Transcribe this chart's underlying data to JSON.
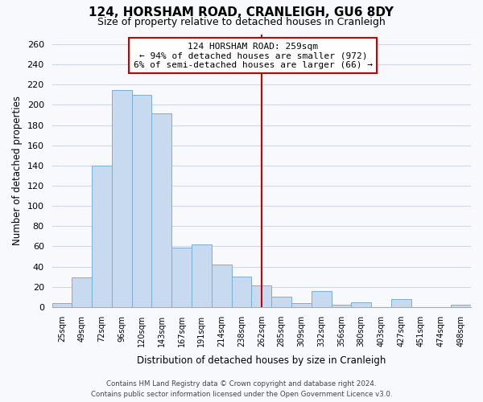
{
  "title": "124, HORSHAM ROAD, CRANLEIGH, GU6 8DY",
  "subtitle": "Size of property relative to detached houses in Cranleigh",
  "xlabel": "Distribution of detached houses by size in Cranleigh",
  "ylabel": "Number of detached properties",
  "bin_labels": [
    "25sqm",
    "49sqm",
    "72sqm",
    "96sqm",
    "120sqm",
    "143sqm",
    "167sqm",
    "191sqm",
    "214sqm",
    "238sqm",
    "262sqm",
    "285sqm",
    "309sqm",
    "332sqm",
    "356sqm",
    "380sqm",
    "403sqm",
    "427sqm",
    "451sqm",
    "474sqm",
    "498sqm"
  ],
  "bar_values": [
    4,
    29,
    140,
    215,
    210,
    192,
    59,
    62,
    42,
    30,
    21,
    10,
    4,
    16,
    2,
    5,
    0,
    8,
    0,
    0,
    2
  ],
  "bar_color": "#c8daf0",
  "bar_edge_color": "#7aafd4",
  "property_line_x": 10.0,
  "property_line_color": "#cc0000",
  "annotation_title": "124 HORSHAM ROAD: 259sqm",
  "annotation_line1": "← 94% of detached houses are smaller (972)",
  "annotation_line2": "6% of semi-detached houses are larger (66) →",
  "annotation_box_color": "white",
  "annotation_box_edge_color": "#cc0000",
  "ylim": [
    0,
    270
  ],
  "yticks": [
    0,
    20,
    40,
    60,
    80,
    100,
    120,
    140,
    160,
    180,
    200,
    220,
    240,
    260
  ],
  "footer1": "Contains HM Land Registry data © Crown copyright and database right 2024.",
  "footer2": "Contains public sector information licensed under the Open Government Licence v3.0.",
  "background_color": "#f7f9fd",
  "plot_bg_color": "#f7f9fd",
  "grid_color": "#d0d8e8"
}
